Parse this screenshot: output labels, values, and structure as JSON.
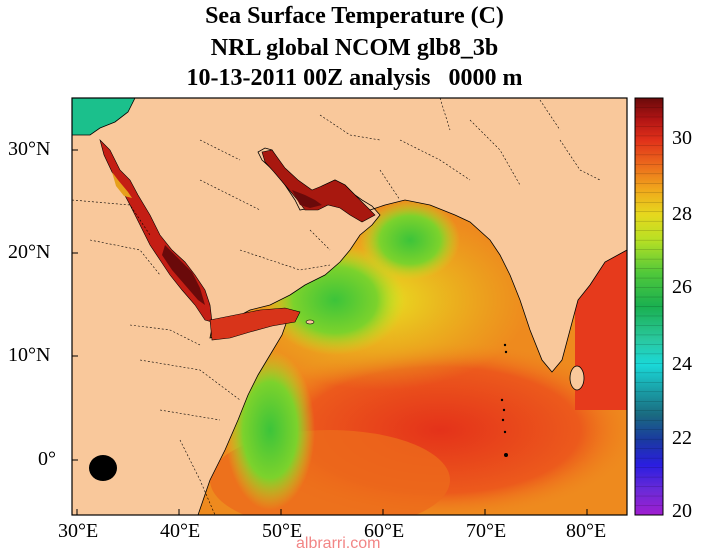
{
  "title": {
    "line1": "Sea Surface Temperature (C)",
    "line2": "NRL global NCOM glb8_3b",
    "line3": "10-13-2011 00Z analysis   0000 m"
  },
  "axes": {
    "x_ticks": [
      "30°E",
      "40°E",
      "50°E",
      "60°E",
      "70°E",
      "80°E"
    ],
    "y_ticks": [
      "30°N",
      "20°N",
      "10°N",
      "0°"
    ]
  },
  "colorbar": {
    "ticks": [
      "30",
      "28",
      "26",
      "24",
      "22",
      "20"
    ],
    "min": 20,
    "max": 31
  },
  "colors": {
    "land": "#f9c89b",
    "sea_warm": "#e8401c",
    "sea_hot": "#8b0c0c",
    "sea_mid": "#f08a1c",
    "sea_yellow": "#d8e21e",
    "sea_green": "#4cc832",
    "sea_teal": "#1bc08c"
  },
  "watermark": "albrarri.com"
}
